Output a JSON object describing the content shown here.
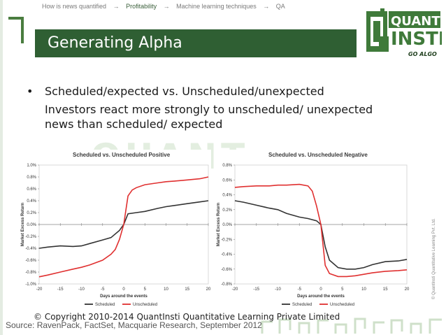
{
  "breadcrumb": {
    "items": [
      "How is news quantified",
      "Profitability",
      "Machine learning techniques",
      "QA"
    ],
    "separator": "→"
  },
  "slide": {
    "title": "Generating Alpha",
    "bullet_mark": "•",
    "bullet": "Scheduled/expected vs. Unscheduled/unexpected",
    "sub_line1": "Investors react more strongly to unscheduled/ unexpected",
    "sub_line2": "news than scheduled/ expected"
  },
  "logo": {
    "line1": "QUANT",
    "line2": "INSTI",
    "tagline": "GO ALGO"
  },
  "watermark": "QUANT",
  "footer": {
    "copyright": "© Copyright 2010-2014 QuantInsti Quantitative Learning Private  Limited",
    "source": "Source: RavenPack, FactSet, Macquarie Research, September 2012",
    "side_text": "© QuantInsti Quantitative Learning Pvt. Ltd."
  },
  "colors": {
    "title_bar": "#2f5f33",
    "scheduled": "#333333",
    "unscheduled": "#e03030"
  },
  "chart_data": [
    {
      "type": "line",
      "title": "Scheduled vs. Unscheduled Positive",
      "xlabel": "Days around the events",
      "ylabel": "Market Excess Return",
      "xlim": [
        -20,
        20
      ],
      "ylim": [
        -1.0,
        1.0
      ],
      "xticks": [
        -20,
        -15,
        -10,
        -5,
        0,
        5,
        10,
        15,
        20
      ],
      "yticks": [
        "1.0%",
        "0.8%",
        "0.6%",
        "0.4%",
        "0.2%",
        "0.0%",
        "-0.2%",
        "-0.4%",
        "-0.6%",
        "-0.8%",
        "-1.0%"
      ],
      "legend": [
        "Scheduled",
        "Unscheduled"
      ],
      "legend_position": "bottom",
      "series": [
        {
          "name": "Scheduled",
          "color": "#333333",
          "x": [
            -20,
            -18,
            -15,
            -12,
            -10,
            -8,
            -5,
            -3,
            -1,
            0,
            1,
            3,
            5,
            8,
            10,
            12,
            15,
            18,
            20
          ],
          "y": [
            -0.4,
            -0.38,
            -0.36,
            -0.37,
            -0.36,
            -0.32,
            -0.26,
            -0.22,
            -0.1,
            0.0,
            0.18,
            0.2,
            0.22,
            0.27,
            0.3,
            0.32,
            0.35,
            0.38,
            0.4
          ]
        },
        {
          "name": "Unscheduled",
          "color": "#e03030",
          "x": [
            -20,
            -18,
            -15,
            -12,
            -10,
            -8,
            -5,
            -3,
            -2,
            -1,
            0,
            1,
            2,
            3,
            5,
            8,
            10,
            12,
            15,
            18,
            20
          ],
          "y": [
            -0.88,
            -0.85,
            -0.8,
            -0.75,
            -0.72,
            -0.68,
            -0.6,
            -0.5,
            -0.42,
            -0.25,
            0.0,
            0.48,
            0.58,
            0.62,
            0.67,
            0.7,
            0.72,
            0.73,
            0.75,
            0.77,
            0.8
          ]
        }
      ]
    },
    {
      "type": "line",
      "title": "Scheduled vs. Unscheduled Negative",
      "xlabel": "Days around the events",
      "ylabel": "Market Excess Return",
      "xlim": [
        -20,
        20
      ],
      "ylim": [
        -0.8,
        0.8
      ],
      "xticks": [
        -20,
        -15,
        -10,
        -5,
        0,
        5,
        10,
        15,
        20
      ],
      "yticks": [
        "0.8%",
        "0.6%",
        "0.4%",
        "0.2%",
        "0.0%",
        "-0.2%",
        "-0.4%",
        "-0.6%",
        "-0.8%"
      ],
      "legend": [
        "Scheduled",
        "Unscheduled"
      ],
      "legend_position": "bottom",
      "series": [
        {
          "name": "Scheduled",
          "color": "#333333",
          "x": [
            -20,
            -18,
            -15,
            -12,
            -10,
            -8,
            -5,
            -3,
            -1,
            0,
            1,
            2,
            4,
            6,
            8,
            10,
            12,
            15,
            18,
            20
          ],
          "y": [
            0.32,
            0.3,
            0.26,
            0.22,
            0.2,
            0.15,
            0.1,
            0.08,
            0.05,
            0.0,
            -0.3,
            -0.48,
            -0.58,
            -0.6,
            -0.6,
            -0.58,
            -0.54,
            -0.5,
            -0.49,
            -0.47
          ]
        },
        {
          "name": "Unscheduled",
          "color": "#e03030",
          "x": [
            -20,
            -18,
            -15,
            -12,
            -10,
            -8,
            -5,
            -3,
            -2,
            -1,
            0,
            1,
            2,
            4,
            6,
            8,
            10,
            12,
            15,
            18,
            20
          ],
          "y": [
            0.5,
            0.51,
            0.52,
            0.52,
            0.53,
            0.53,
            0.54,
            0.52,
            0.45,
            0.25,
            0.0,
            -0.55,
            -0.66,
            -0.7,
            -0.7,
            -0.69,
            -0.67,
            -0.65,
            -0.63,
            -0.62,
            -0.61
          ]
        }
      ]
    }
  ]
}
